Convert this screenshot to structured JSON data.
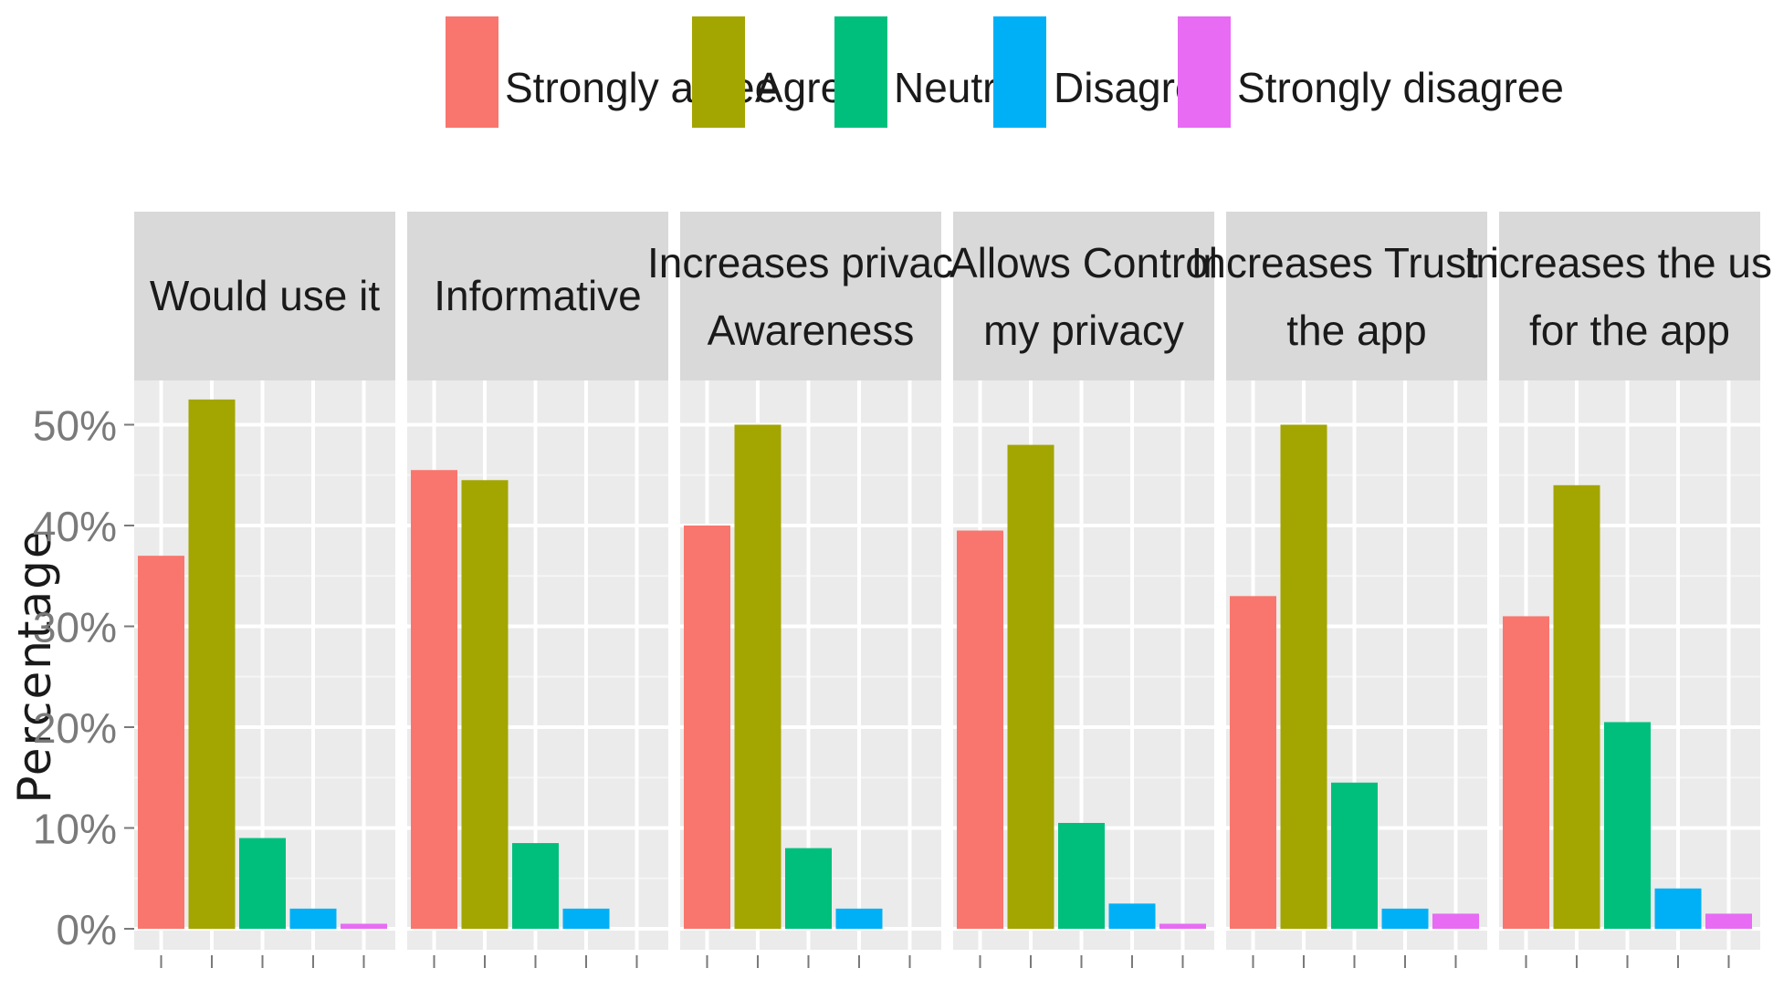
{
  "chart_data": {
    "type": "bar",
    "title": "",
    "ylabel": "Percentage",
    "xlabel": "",
    "ylim": [
      0,
      55
    ],
    "yticks": [
      0,
      10,
      20,
      30,
      40,
      50
    ],
    "ytick_labels": [
      "0%",
      "10%",
      "20%",
      "30%",
      "40%",
      "50%"
    ],
    "legend": {
      "placement": "top",
      "entries": [
        {
          "name": "Strongly agree",
          "color": "#F8766D"
        },
        {
          "name": "Agree",
          "color": "#A3A500"
        },
        {
          "name": "Neutral",
          "color": "#00BF7D"
        },
        {
          "name": "Disagree",
          "color": "#00B0F6"
        },
        {
          "name": "Strongly disagree",
          "color": "#E76BF3"
        }
      ]
    },
    "panels": [
      {
        "title_lines": [
          "Would use it"
        ],
        "values": [
          37,
          52.5,
          9,
          2,
          0.5
        ]
      },
      {
        "title_lines": [
          "Informative"
        ],
        "values": [
          45.5,
          44.5,
          8.5,
          2,
          0
        ]
      },
      {
        "title_lines": [
          "Increases privacy",
          "Awareness"
        ],
        "values": [
          40,
          50,
          8,
          2,
          0
        ]
      },
      {
        "title_lines": [
          "Allows Control",
          "my privacy"
        ],
        "values": [
          39.5,
          48,
          10.5,
          2.5,
          0.5
        ]
      },
      {
        "title_lines": [
          "Increases Trust in",
          "the app"
        ],
        "values": [
          33,
          50,
          14.5,
          2,
          1.5
        ]
      },
      {
        "title_lines": [
          "Increases the use",
          "for the app"
        ],
        "values": [
          31,
          44,
          20.5,
          4,
          1.5
        ]
      }
    ]
  }
}
